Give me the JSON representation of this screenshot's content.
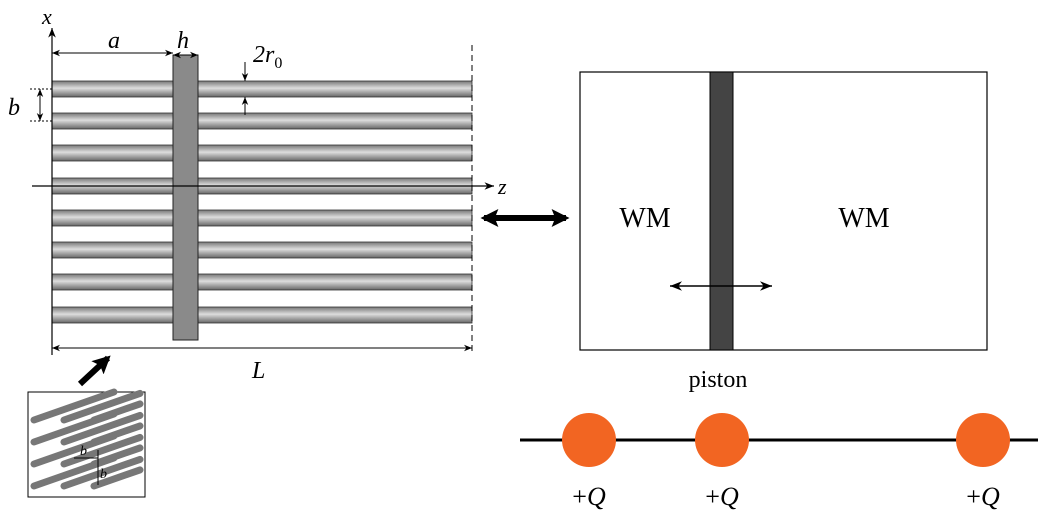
{
  "left_panel": {
    "axis_x": "x",
    "axis_z": "z",
    "spacing": "a",
    "plate_width": "h",
    "diameter": {
      "main": "2r",
      "subscript": "0"
    },
    "period": "b",
    "length": "L",
    "inset": {
      "labels": [
        "b",
        "b"
      ]
    }
  },
  "right_panel": {
    "regions": [
      "WM",
      "WM"
    ],
    "piston": "piston"
  },
  "charges": [
    "+Q",
    "+Q",
    "+Q"
  ]
}
